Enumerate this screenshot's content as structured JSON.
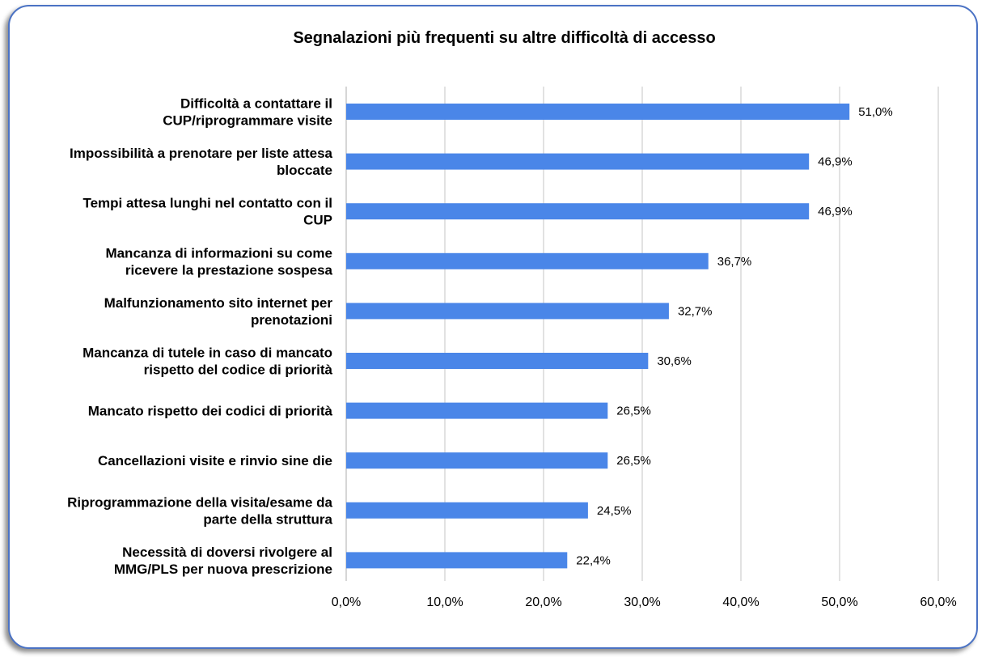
{
  "chart_data": {
    "type": "bar",
    "orientation": "horizontal",
    "title": "Segnalazioni più frequenti su altre difficoltà di accesso",
    "xlabel": "",
    "ylabel": "",
    "xlim": [
      0,
      60
    ],
    "x_ticks": [
      "0,0%",
      "10,0%",
      "20,0%",
      "30,0%",
      "40,0%",
      "50,0%",
      "60,0%"
    ],
    "grid": "vertical",
    "legend": "none",
    "bar_color": "#4a86e8",
    "categories": [
      [
        "Difficoltà a contattare il",
        "CUP/riprogrammare visite"
      ],
      [
        "Impossibilità a prenotare per liste attesa",
        "bloccate"
      ],
      [
        "Tempi attesa lunghi nel contatto con il",
        "CUP"
      ],
      [
        "Mancanza di informazioni su come",
        "ricevere la prestazione sospesa"
      ],
      [
        "Malfunzionamento sito internet per",
        "prenotazioni"
      ],
      [
        "Mancanza di tutele in caso di mancato",
        "rispetto del codice di priorità"
      ],
      [
        "Mancato rispetto dei codici di priorità"
      ],
      [
        "Cancellazioni visite e rinvio sine die"
      ],
      [
        "Riprogrammazione della visita/esame da",
        "parte della struttura"
      ],
      [
        "Necessità di doversi rivolgere al",
        "MMG/PLS per nuova prescrizione"
      ]
    ],
    "values": [
      51.0,
      46.9,
      46.9,
      36.7,
      32.7,
      30.6,
      26.5,
      26.5,
      24.5,
      22.4
    ],
    "value_labels": [
      "51,0%",
      "46,9%",
      "46,9%",
      "36,7%",
      "32,7%",
      "30,6%",
      "26,5%",
      "26,5%",
      "24,5%",
      "22,4%"
    ]
  }
}
